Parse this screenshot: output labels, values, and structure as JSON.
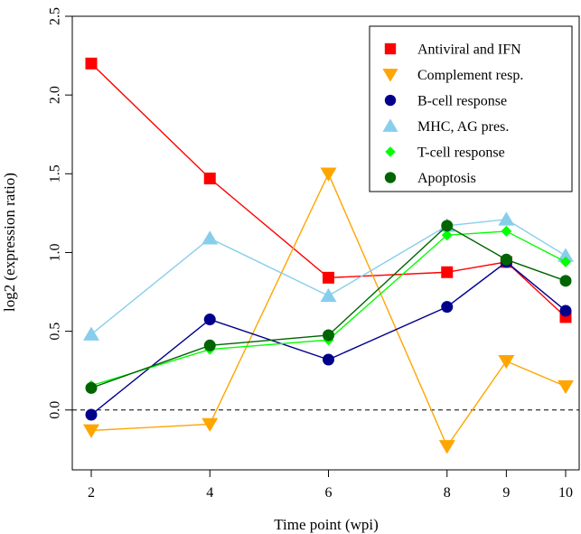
{
  "chart_data": {
    "type": "line",
    "xlabel": "Time point (wpi)",
    "ylabel": "log2 (expression ratio)",
    "x": [
      2,
      4,
      6,
      8,
      9,
      10
    ],
    "x_tick_labels": [
      "2",
      "4",
      "6",
      "8",
      "9",
      "10"
    ],
    "ylim": [
      -0.38,
      2.5
    ],
    "y_ticks": [
      0.0,
      0.5,
      1.0,
      1.5,
      2.0,
      2.5
    ],
    "y_tick_labels": [
      "0.0",
      "0.5",
      "1.0",
      "1.5",
      "2.0",
      "2.5"
    ],
    "reference_line": 0,
    "grid": false,
    "legend_position": "top-right",
    "series": [
      {
        "name": "Antiviral and IFN",
        "color": "#ff0000",
        "marker": "square",
        "values": [
          2.2,
          1.47,
          0.84,
          0.875,
          0.94,
          0.59
        ]
      },
      {
        "name": "Complement resp.",
        "color": "#ffa500",
        "marker": "triangle-down",
        "values": [
          -0.13,
          -0.09,
          1.5,
          -0.23,
          0.31,
          0.15
        ]
      },
      {
        "name": "B-cell response",
        "color": "#00008b",
        "marker": "circle",
        "values": [
          -0.03,
          0.575,
          0.32,
          0.655,
          0.94,
          0.63
        ]
      },
      {
        "name": "MHC, AG pres.",
        "color": "#87ceeb",
        "marker": "triangle-up",
        "values": [
          0.48,
          1.09,
          0.725,
          1.17,
          1.21,
          0.98
        ]
      },
      {
        "name": "T-cell response",
        "color": "#00ff00",
        "marker": "diamond",
        "values": [
          0.155,
          0.385,
          0.445,
          1.11,
          1.135,
          0.94
        ]
      },
      {
        "name": "Apoptosis",
        "color": "#006400",
        "marker": "circle",
        "values": [
          0.14,
          0.41,
          0.475,
          1.17,
          0.955,
          0.82
        ]
      }
    ]
  }
}
